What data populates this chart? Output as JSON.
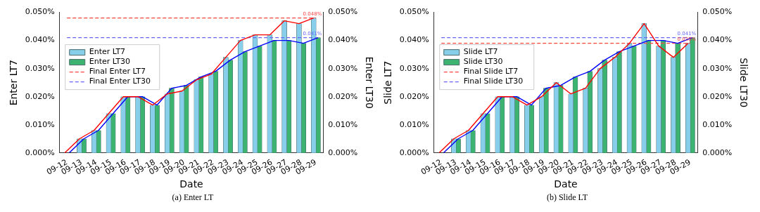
{
  "chart_data": [
    {
      "type": "bar",
      "title": "(a)  Enter LT",
      "xlabel": "Date",
      "ylabel": "Enter LT7",
      "y2label": "Enter LT30",
      "legend": "top left",
      "grid": false,
      "categories": [
        "09-12",
        "09-13",
        "09-14",
        "09-15",
        "09-16",
        "09-17",
        "09-18",
        "09-19",
        "09-20",
        "09-21",
        "09-22",
        "09-23",
        "09-24",
        "09-25",
        "09-26",
        "09-27",
        "09-28",
        "09-29"
      ],
      "ylim": [
        0,
        0.05
      ],
      "yticks": [
        {
          "value": 0,
          "label": "0.000%"
        },
        {
          "value": 0.01,
          "label": "0.010%"
        },
        {
          "value": 0.02,
          "label": "0.020%"
        },
        {
          "value": 0.03,
          "label": "0.030%"
        },
        {
          "value": 0.04,
          "label": "0.040%"
        },
        {
          "value": 0.05,
          "label": "0.050%"
        }
      ],
      "y2lim": [
        0,
        0.05
      ],
      "y2ticks": [
        {
          "value": 0,
          "label": "0.000%"
        },
        {
          "value": 0.01,
          "label": "0.010%"
        },
        {
          "value": 0.02,
          "label": "0.020%"
        },
        {
          "value": 0.03,
          "label": "0.030%"
        },
        {
          "value": 0.04,
          "label": "0.040%"
        },
        {
          "value": 0.05,
          "label": "0.050%"
        }
      ],
      "series": [
        {
          "name": "Enter LT7",
          "color": "#87ceeb",
          "values": [
            0,
            0.005,
            0.008,
            0.014,
            0.02,
            0.02,
            0.017,
            0.021,
            0.022,
            0.026,
            0.028,
            0.034,
            0.04,
            0.042,
            0.042,
            0.047,
            0.046,
            0.048
          ]
        },
        {
          "name": "Enter LT30",
          "axis": "y2",
          "color": "#3cb371",
          "values": [
            0,
            0.005,
            0.008,
            0.014,
            0.02,
            0.02,
            0.017,
            0.023,
            0.024,
            0.027,
            0.029,
            0.033,
            0.036,
            0.038,
            0.04,
            0.04,
            0.039,
            0.041
          ]
        },
        {
          "type": "line",
          "color": "#ff0000",
          "values": [
            0,
            0.005,
            0.008,
            0.014,
            0.02,
            0.02,
            0.017,
            0.021,
            0.022,
            0.026,
            0.028,
            0.034,
            0.04,
            0.042,
            0.042,
            0.047,
            0.046,
            0.048
          ]
        },
        {
          "type": "line",
          "axis": "y2",
          "color": "#0000ff",
          "values": [
            0,
            0.005,
            0.008,
            0.014,
            0.02,
            0.02,
            0.017,
            0.023,
            0.024,
            0.027,
            0.029,
            0.033,
            0.036,
            0.038,
            0.04,
            0.04,
            0.039,
            0.041
          ]
        },
        {
          "name": "Final Enter LT7",
          "type": "line",
          "line_style": "dashed",
          "color": "#ff4444",
          "values": [
            0.048,
            0.048,
            0.048,
            0.048,
            0.048,
            0.048,
            0.048,
            0.048,
            0.048,
            0.048,
            0.048,
            0.048,
            0.048,
            0.048,
            0.048,
            0.048,
            0.048,
            0.048
          ],
          "value_labels": [
            null,
            null,
            null,
            null,
            null,
            null,
            null,
            null,
            null,
            null,
            null,
            null,
            null,
            null,
            null,
            null,
            null,
            "0.048%"
          ]
        },
        {
          "name": "Final Enter LT30",
          "type": "line",
          "axis": "y2",
          "line_style": "dashed",
          "color": "#6666ff",
          "values": [
            0.041,
            0.041,
            0.041,
            0.041,
            0.041,
            0.041,
            0.041,
            0.041,
            0.041,
            0.041,
            0.041,
            0.041,
            0.041,
            0.041,
            0.041,
            0.041,
            0.041,
            0.041
          ],
          "value_labels": [
            null,
            null,
            null,
            null,
            null,
            null,
            null,
            null,
            null,
            null,
            null,
            null,
            null,
            null,
            null,
            null,
            null,
            "0.041%"
          ]
        }
      ]
    },
    {
      "type": "bar",
      "title": "(b)  Slide LT",
      "xlabel": "Date",
      "ylabel": "Slide LT7",
      "y2label": "Slide LT30",
      "legend": "top left",
      "grid": false,
      "categories": [
        "09-12",
        "09-13",
        "09-14",
        "09-15",
        "09-16",
        "09-17",
        "09-18",
        "09-19",
        "09-20",
        "09-21",
        "09-22",
        "09-23",
        "09-24",
        "09-25",
        "09-26",
        "09-27",
        "09-28",
        "09-29"
      ],
      "ylim": [
        0,
        0.05
      ],
      "yticks": [
        {
          "value": 0,
          "label": "0.000%"
        },
        {
          "value": 0.01,
          "label": "0.010%"
        },
        {
          "value": 0.02,
          "label": "0.020%"
        },
        {
          "value": 0.03,
          "label": "0.030%"
        },
        {
          "value": 0.04,
          "label": "0.040%"
        },
        {
          "value": 0.05,
          "label": "0.050%"
        }
      ],
      "y2lim": [
        0,
        0.05
      ],
      "y2ticks": [
        {
          "value": 0,
          "label": "0.000%"
        },
        {
          "value": 0.01,
          "label": "0.010%"
        },
        {
          "value": 0.02,
          "label": "0.020%"
        },
        {
          "value": 0.03,
          "label": "0.030%"
        },
        {
          "value": 0.04,
          "label": "0.040%"
        },
        {
          "value": 0.05,
          "label": "0.050%"
        }
      ],
      "series": [
        {
          "name": "Slide LT7",
          "color": "#87ceeb",
          "values": [
            0,
            0.005,
            0.008,
            0.014,
            0.02,
            0.02,
            0.017,
            0.02,
            0.025,
            0.021,
            0.023,
            0.03,
            0.034,
            0.039,
            0.046,
            0.038,
            0.034,
            0.039
          ]
        },
        {
          "name": "Slide LT30",
          "axis": "y2",
          "color": "#3cb371",
          "values": [
            0,
            0.005,
            0.008,
            0.014,
            0.02,
            0.02,
            0.017,
            0.023,
            0.024,
            0.027,
            0.029,
            0.033,
            0.036,
            0.038,
            0.04,
            0.04,
            0.039,
            0.041
          ]
        },
        {
          "type": "line",
          "color": "#ff0000",
          "values": [
            0,
            0.005,
            0.008,
            0.014,
            0.02,
            0.02,
            0.017,
            0.02,
            0.025,
            0.021,
            0.023,
            0.03,
            0.034,
            0.039,
            0.046,
            0.038,
            0.034,
            0.039
          ]
        },
        {
          "type": "line",
          "axis": "y2",
          "color": "#0000ff",
          "values": [
            0,
            0.005,
            0.008,
            0.014,
            0.02,
            0.02,
            0.017,
            0.023,
            0.024,
            0.027,
            0.029,
            0.033,
            0.036,
            0.038,
            0.04,
            0.04,
            0.039,
            0.041
          ]
        },
        {
          "name": "Final Slide LT7",
          "type": "line",
          "line_style": "dashed",
          "color": "#ff4444",
          "values": [
            0.039,
            0.039,
            0.039,
            0.039,
            0.039,
            0.039,
            0.039,
            0.039,
            0.039,
            0.039,
            0.039,
            0.039,
            0.039,
            0.039,
            0.039,
            0.039,
            0.039,
            0.039
          ],
          "value_labels": [
            null,
            null,
            null,
            null,
            null,
            null,
            null,
            null,
            null,
            null,
            null,
            null,
            null,
            null,
            null,
            null,
            null,
            "0.039%"
          ]
        },
        {
          "name": "Final Slide LT30",
          "type": "line",
          "axis": "y2",
          "line_style": "dashed",
          "color": "#6666ff",
          "values": [
            0.041,
            0.041,
            0.041,
            0.041,
            0.041,
            0.041,
            0.041,
            0.041,
            0.041,
            0.041,
            0.041,
            0.041,
            0.041,
            0.041,
            0.041,
            0.041,
            0.041,
            0.041
          ],
          "value_labels": [
            null,
            null,
            null,
            null,
            null,
            null,
            null,
            null,
            null,
            null,
            null,
            null,
            null,
            null,
            null,
            null,
            null,
            "0.041%"
          ]
        }
      ]
    }
  ]
}
